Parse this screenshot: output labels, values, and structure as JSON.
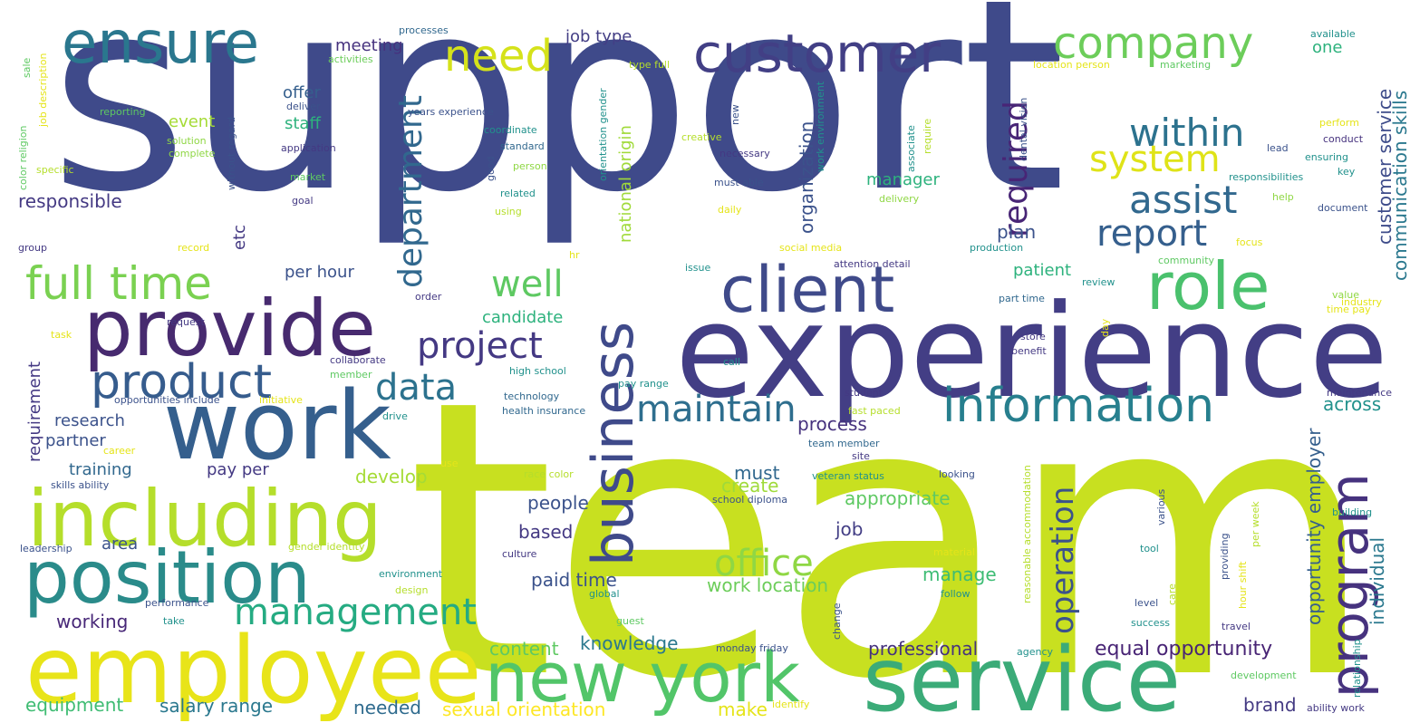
{
  "palette": {
    "indigo": "#3f4a8a",
    "purple": "#472a6f",
    "blue": "#365c8d",
    "teal": "#2a7f8e",
    "green": "#35b779",
    "lime": "#6ece58",
    "yellow_green": "#b5de2b",
    "yellow": "#e3e418",
    "background": "#ffffff"
  },
  "words": {
    "support": "support",
    "team": "team",
    "experience": "experience",
    "service": "service",
    "employee": "employee",
    "work": "work",
    "including": "including",
    "position": "position",
    "provide": "provide",
    "new_york": "new york",
    "business": "business",
    "program": "program",
    "client": "client",
    "customer": "customer",
    "ensure": "ensure",
    "information": "information",
    "product": "product",
    "role": "role",
    "company": "company",
    "full_time": "full time",
    "management": "management",
    "need": "need",
    "project": "project",
    "maintain": "maintain",
    "required": "required",
    "assist": "assist",
    "report": "report",
    "within": "within",
    "system": "system",
    "department": "department",
    "operation": "operation",
    "office": "office",
    "well": "well",
    "data": "data",
    "customer_service": "customer service",
    "communication_skills": "communication skills",
    "opportunity_employer": "opportunity employer",
    "individual": "individual",
    "organization": "organization",
    "national_origin": "national origin",
    "equal_opportunity": "equal opportunity",
    "professional": "professional",
    "sexual_orientation": "sexual orientation",
    "salary_range": "salary range",
    "equipment": "equipment",
    "working": "working",
    "knowledge": "knowledge",
    "content": "content",
    "needed": "needed",
    "make": "make",
    "brand": "brand",
    "paid_time": "paid time",
    "work_location": "work location",
    "manage": "manage",
    "appropriate": "appropriate",
    "create": "create",
    "must": "must",
    "develop": "develop",
    "people": "people",
    "based": "based",
    "job": "job",
    "process": "process",
    "patient": "patient",
    "plan": "plan",
    "manager": "manager",
    "across": "across",
    "candidate": "candidate",
    "research": "research",
    "partner": "partner",
    "training": "training",
    "pay_per": "pay per",
    "area": "area",
    "requirement": "requirement",
    "responsible": "responsible",
    "event": "event",
    "staff": "staff",
    "offer": "offer",
    "meeting": "meeting",
    "job_type": "job type",
    "per_hour": "per hour",
    "etc": "etc",
    "one": "one",
    "processes": "processes",
    "activities": "activities",
    "type_full": "type full",
    "location_person": "location person",
    "available": "available",
    "marketing": "marketing",
    "years_experience": "years experience",
    "deliver": "deliver",
    "reporting": "reporting",
    "solution": "solution",
    "complete": "complete",
    "without_regard": "without regard",
    "specific": "specific",
    "goal": "goal",
    "market": "market",
    "application": "application",
    "coordinate": "coordinate",
    "standard": "standard",
    "person": "person",
    "related": "related",
    "using": "using",
    "creative": "creative",
    "necessary": "necessary",
    "must_able": "must able",
    "daily": "daily",
    "delivery": "delivery",
    "associate": "associate",
    "require": "require",
    "dental_vision": "dental vision",
    "work_environment": "work environment",
    "orientation_gender": "orientation gender",
    "new": "new",
    "good": "good",
    "perform": "perform",
    "conduct": "conduct",
    "ensuring": "ensuring",
    "key": "key",
    "document": "document",
    "lead": "lead",
    "help": "help",
    "responsibilities": "responsibilities",
    "color_religion": "color religion",
    "sale": "sale",
    "job_description": "job description",
    "group": "group",
    "record": "record",
    "request": "request",
    "order": "order",
    "task": "task",
    "hr": "hr",
    "social_media": "social media",
    "production": "production",
    "focus": "focus",
    "community": "community",
    "value": "value",
    "time_pay": "time pay",
    "industry": "industry",
    "review": "review",
    "attention_detail": "attention detail",
    "issue": "issue",
    "part_time": "part time",
    "store": "store",
    "benefit": "benefit",
    "call": "call",
    "day": "day",
    "collaborate": "collaborate",
    "member": "member",
    "high_school": "high school",
    "pay_range": "pay range",
    "student": "student",
    "maintenance": "maintenance",
    "opportunities_include": "opportunities include",
    "initiative": "initiative",
    "technology": "technology",
    "health_insurance": "health insurance",
    "fast_paced": "fast paced",
    "drive": "drive",
    "team_member": "team member",
    "career": "career",
    "site": "site",
    "use": "use",
    "veteran_status": "veteran status",
    "looking": "looking",
    "race_color": "race color",
    "school_diploma": "school diploma",
    "skills_ability": "skills ability",
    "leadership": "leadership",
    "gender_identity": "gender identity",
    "culture": "culture",
    "environment": "environment",
    "design": "design",
    "performance": "performance",
    "take": "take",
    "global": "global",
    "guest": "guest",
    "monday_friday": "monday friday",
    "agency": "agency",
    "identify": "identify",
    "change": "change",
    "material": "material",
    "follow": "follow",
    "reasonable_accommodation": "reasonable accommodation",
    "various": "various",
    "tool": "tool",
    "care": "care",
    "level": "level",
    "success": "success",
    "providing": "providing",
    "hour_shift": "hour shift",
    "per_week": "per week",
    "building": "building",
    "travel": "travel",
    "relationship": "relationship",
    "development": "development",
    "ability_work": "ability work"
  }
}
